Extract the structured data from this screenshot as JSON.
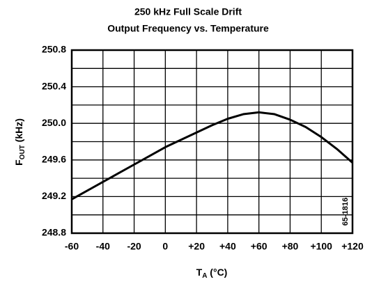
{
  "chart_data": {
    "type": "line",
    "title": "250 kHz Full Scale Drift",
    "subtitle": "Output Frequency vs. Temperature",
    "ylabel": {
      "main": "F",
      "sub": "OUT",
      "rest": " (kHz)"
    },
    "xlabel": {
      "main": "T",
      "sub": "A",
      "rest": " (°C)"
    },
    "annotation": "65-1816",
    "x": [
      -60,
      -50,
      -40,
      -30,
      -20,
      -10,
      0,
      10,
      20,
      30,
      40,
      50,
      60,
      70,
      80,
      90,
      100,
      110,
      120
    ],
    "series": [
      {
        "name": "FOUT",
        "color": "#000000",
        "values": [
          249.17,
          249.265,
          249.36,
          249.455,
          249.55,
          249.645,
          249.74,
          249.82,
          249.9,
          249.98,
          250.05,
          250.1,
          250.12,
          250.1,
          250.04,
          249.96,
          249.85,
          249.72,
          249.57
        ]
      }
    ],
    "xlim": [
      -60,
      120
    ],
    "xticks": [
      -60,
      -40,
      -20,
      0,
      {
        "value": 20,
        "label": "+20"
      },
      {
        "value": 40,
        "label": "+40"
      },
      {
        "value": 60,
        "label": "+60"
      },
      {
        "value": 80,
        "label": "+80"
      },
      {
        "value": 100,
        "label": "+100"
      },
      {
        "value": 120,
        "label": "+120"
      }
    ],
    "ylim": [
      248.8,
      250.8
    ],
    "yticks": [
      {
        "value": 248.8,
        "label": "248.8"
      },
      {
        "value": 249.2,
        "label": "249.2"
      },
      {
        "value": 249.6,
        "label": "249.6"
      },
      {
        "value": 250.0,
        "label": "250.0"
      },
      {
        "value": 250.4,
        "label": "250.4"
      },
      {
        "value": 250.8,
        "label": "250.8"
      }
    ],
    "ygrid": [
      249.0,
      249.4,
      249.8,
      250.2,
      250.6
    ],
    "grid": true
  }
}
